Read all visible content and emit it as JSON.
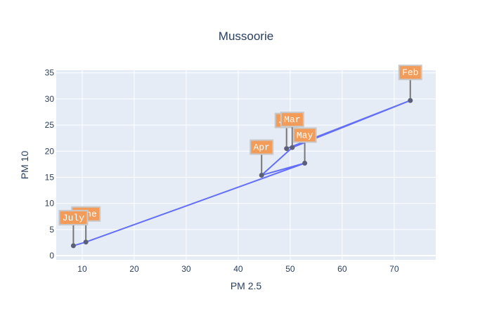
{
  "chart_data": {
    "type": "scatter",
    "title": "Mussoorie",
    "xlabel": "PM 2.5",
    "ylabel": "PM 10",
    "xlim": [
      5,
      78
    ],
    "ylim": [
      -0.8,
      35.5
    ],
    "xticks": [
      10,
      20,
      30,
      40,
      50,
      60,
      70
    ],
    "yticks": [
      0,
      5,
      10,
      15,
      20,
      25,
      30,
      35
    ],
    "grid": true,
    "series": [
      {
        "mode": "lines+markers",
        "labels": [
          "Jan",
          "Feb",
          "Mar",
          "Apr",
          "May",
          "June",
          "July"
        ],
        "x": [
          49.3,
          73.1,
          50.4,
          44.5,
          52.8,
          10.7,
          8.3
        ],
        "y": [
          20.5,
          29.7,
          20.7,
          15.4,
          17.7,
          2.6,
          1.9
        ]
      }
    ],
    "colors": {
      "line": "#636efa",
      "marker": "#5b5f77",
      "annotation_fill": "#f39c5a",
      "annotation_border": "#c8c8c8",
      "plot_bg": "#e5ecf6",
      "grid": "#ffffff",
      "text": "#2a3f5f"
    }
  }
}
